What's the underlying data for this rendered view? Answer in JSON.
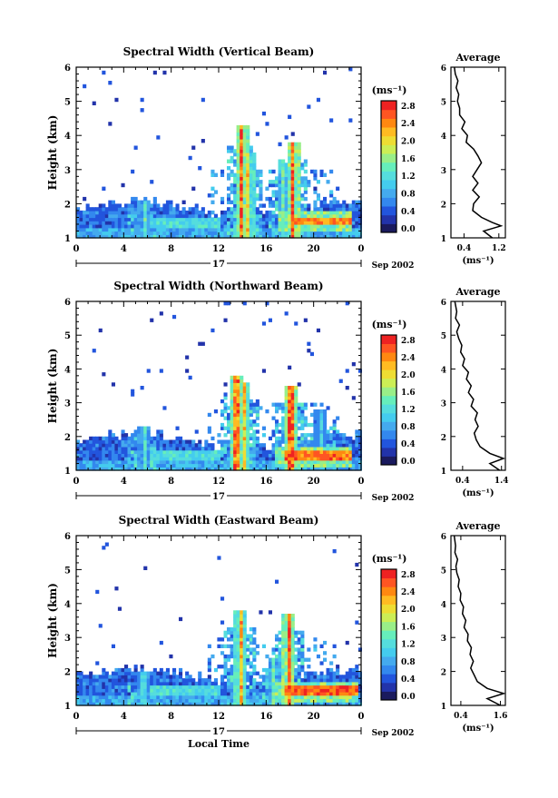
{
  "figure": {
    "date_label": "Sep 2002",
    "day_label": "17",
    "xlabel": "Local Time",
    "colorbar_unit": "(ms⁻¹)",
    "avg_unit": "(ms⁻¹)"
  },
  "colormap": [
    "#1a1a5e",
    "#2233aa",
    "#2255dd",
    "#3388ee",
    "#44aaee",
    "#44ccee",
    "#55dddd",
    "#66eebb",
    "#99ee88",
    "#ccee55",
    "#eedd33",
    "#ffbb22",
    "#ff8811",
    "#ff5522",
    "#ee2222"
  ],
  "chart_data": [
    {
      "type": "heatmap",
      "title": "Spectral Width (Vertical Beam)",
      "xlabel": "",
      "ylabel": "Height (km)",
      "xlim": [
        0,
        24
      ],
      "ylim": [
        1,
        6
      ],
      "x_ticks": [
        "0",
        "4",
        "8",
        "12",
        "16",
        "20",
        "0"
      ],
      "y_ticks": [
        "1",
        "2",
        "3",
        "4",
        "5",
        "6"
      ],
      "colorbar": {
        "ticks": [
          "0.0",
          "0.4",
          "0.8",
          "1.2",
          "1.6",
          "2.0",
          "2.4",
          "2.8"
        ],
        "range": [
          0,
          3.0
        ]
      },
      "average": {
        "title": "Average",
        "xlabel": "(ms⁻¹)",
        "x_ticks": [
          "0.4",
          "1.2"
        ],
        "xlim": [
          0.1,
          1.35
        ],
        "height": [
          1.0,
          1.2,
          1.35,
          1.45,
          1.6,
          1.8,
          2.0,
          2.2,
          2.4,
          2.6,
          2.8,
          3.0,
          3.2,
          3.4,
          3.6,
          3.8,
          4.0,
          4.2,
          4.4,
          4.6,
          4.8,
          5.0,
          5.2,
          5.4,
          5.6,
          5.8,
          6.0
        ],
        "width": [
          1.05,
          0.85,
          1.25,
          1.05,
          0.8,
          0.6,
          0.62,
          0.75,
          0.6,
          0.72,
          0.6,
          0.7,
          0.8,
          0.72,
          0.62,
          0.45,
          0.48,
          0.35,
          0.42,
          0.3,
          0.3,
          0.25,
          0.28,
          0.22,
          0.26,
          0.2,
          0.18
        ]
      },
      "events": [
        {
          "t": 13.8,
          "h_top": 4.3,
          "v": 2.8
        },
        {
          "t": 14.3,
          "h_top": 3.5,
          "v": 2.2
        },
        {
          "t": 17.3,
          "h_top": 3.2,
          "v": 1.6
        },
        {
          "t": 18.1,
          "h_top": 3.8,
          "v": 2.8
        },
        {
          "t": 5.6,
          "h_top": 2.1,
          "v": 1.5
        }
      ],
      "hot_layers": [
        {
          "t0": 18.0,
          "t1": 23.0,
          "h": 1.45,
          "v": 2.6
        }
      ]
    },
    {
      "type": "heatmap",
      "title": "Spectral Width (Northward Beam)",
      "xlabel": "",
      "ylabel": "Height (km)",
      "xlim": [
        0,
        24
      ],
      "ylim": [
        1,
        6
      ],
      "x_ticks": [
        "0",
        "4",
        "8",
        "12",
        "16",
        "20",
        "0"
      ],
      "y_ticks": [
        "1",
        "2",
        "3",
        "4",
        "5",
        "6"
      ],
      "colorbar": {
        "ticks": [
          "0.0",
          "0.4",
          "0.8",
          "1.2",
          "1.6",
          "2.0",
          "2.4",
          "2.8"
        ],
        "range": [
          0,
          3.0
        ]
      },
      "average": {
        "title": "Average",
        "xlabel": "(ms⁻¹)",
        "x_ticks": [
          "0.4",
          "1.4"
        ],
        "xlim": [
          0.1,
          1.5
        ],
        "height": [
          1.0,
          1.2,
          1.35,
          1.5,
          1.7,
          1.9,
          2.1,
          2.3,
          2.5,
          2.7,
          2.9,
          3.1,
          3.3,
          3.5,
          3.7,
          3.9,
          4.1,
          4.3,
          4.5,
          4.7,
          4.9,
          5.1,
          5.3,
          5.5,
          5.7,
          6.0
        ],
        "width": [
          1.35,
          1.1,
          1.45,
          1.1,
          0.85,
          0.75,
          0.7,
          0.8,
          0.72,
          0.78,
          0.62,
          0.68,
          0.55,
          0.62,
          0.5,
          0.55,
          0.4,
          0.45,
          0.35,
          0.38,
          0.3,
          0.25,
          0.32,
          0.22,
          0.25,
          0.2
        ]
      },
      "events": [
        {
          "t": 13.4,
          "h_top": 3.8,
          "v": 2.6
        },
        {
          "t": 14.0,
          "h_top": 3.6,
          "v": 2.4
        },
        {
          "t": 17.9,
          "h_top": 3.5,
          "v": 2.8
        },
        {
          "t": 5.6,
          "h_top": 2.3,
          "v": 1.4
        },
        {
          "t": 20.5,
          "h_top": 2.8,
          "v": 1.2
        }
      ],
      "hot_layers": [
        {
          "t0": 17.5,
          "t1": 23.0,
          "h": 1.4,
          "v": 2.7
        }
      ]
    },
    {
      "type": "heatmap",
      "title": "Spectral Width (Eastward Beam)",
      "xlabel": "Local Time",
      "ylabel": "Height (km)",
      "xlim": [
        0,
        24
      ],
      "ylim": [
        1,
        6
      ],
      "x_ticks": [
        "0",
        "4",
        "8",
        "12",
        "16",
        "20",
        "0"
      ],
      "y_ticks": [
        "1",
        "2",
        "3",
        "4",
        "5",
        "6"
      ],
      "colorbar": {
        "ticks": [
          "0.0",
          "0.4",
          "0.8",
          "1.2",
          "1.6",
          "2.0",
          "2.4",
          "2.8"
        ],
        "range": [
          0,
          3.0
        ]
      },
      "average": {
        "title": "Average",
        "xlabel": "(ms⁻¹)",
        "x_ticks": [
          "0.4",
          "1.6"
        ],
        "xlim": [
          0.1,
          1.75
        ],
        "height": [
          1.0,
          1.2,
          1.35,
          1.5,
          1.7,
          1.9,
          2.1,
          2.3,
          2.5,
          2.7,
          2.9,
          3.1,
          3.3,
          3.5,
          3.7,
          3.9,
          4.1,
          4.3,
          4.5,
          4.7,
          4.9,
          5.1,
          5.3,
          5.5,
          5.7,
          6.0
        ],
        "width": [
          1.6,
          1.2,
          1.7,
          1.2,
          0.9,
          0.8,
          0.7,
          0.78,
          0.68,
          0.72,
          0.6,
          0.62,
          0.5,
          0.55,
          0.45,
          0.48,
          0.38,
          0.4,
          0.32,
          0.35,
          0.28,
          0.25,
          0.3,
          0.22,
          0.24,
          0.2
        ]
      },
      "events": [
        {
          "t": 13.7,
          "h_top": 3.8,
          "v": 2.4
        },
        {
          "t": 17.8,
          "h_top": 3.7,
          "v": 2.8
        },
        {
          "t": 16.5,
          "h_top": 2.4,
          "v": 1.6
        },
        {
          "t": 5.5,
          "h_top": 2.0,
          "v": 1.3
        }
      ],
      "hot_layers": [
        {
          "t0": 17.5,
          "t1": 23.5,
          "h": 1.4,
          "v": 2.8
        }
      ]
    }
  ]
}
